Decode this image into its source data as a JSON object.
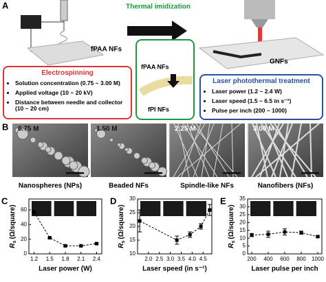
{
  "panel_a": {
    "label": "A",
    "fpaa_label": "fPAA NFs",
    "arrow_label": "Thermal imidization",
    "inset_top": "fPAA NFs",
    "inset_bottom": "fPI NFs",
    "gnf_label": "GNFs",
    "electrospinning": {
      "title": "Electrospinning",
      "items": [
        "Solution concentration (0.75 ~ 3.00 M)",
        "Applied voltage (10 ~ 20 kV)",
        "Distance between needle and collector (10 ~ 20 cm)"
      ]
    },
    "laser": {
      "title": "Laser photothermal treatment",
      "items": [
        "Laser power (1.2 ~ 2.4 W)",
        "Laser speed (1.5 ~ 6.5 in s⁻¹)",
        "Pulse per inch (200 ~ 1000)"
      ]
    }
  },
  "panel_b": {
    "label": "B",
    "images": [
      {
        "concentration": "0.75 M",
        "caption": "Nanospheres (NPs)"
      },
      {
        "concentration": "1.50 M",
        "caption": "Beaded NFs"
      },
      {
        "concentration": "2.25 M",
        "caption": "Spindle-like NFs"
      },
      {
        "concentration": "3.00 M",
        "caption": "Nanofibers (NFs)"
      }
    ]
  },
  "chart_data": [
    {
      "type": "line",
      "panel": "C",
      "x_label": "Laser power (W)",
      "y_label_symbol": "R",
      "y_label_subscript": "s",
      "y_label_unit": "(Ω/square)",
      "x": [
        1.2,
        1.5,
        1.8,
        2.1,
        2.4
      ],
      "xlim": [
        1.1,
        2.5
      ],
      "xticks": [
        1.2,
        1.5,
        1.8,
        2.1,
        2.4
      ],
      "ylim": [
        0,
        75
      ],
      "yticks": [
        0,
        20,
        40,
        60
      ],
      "series": [
        {
          "color": "#000000",
          "values": [
            57,
            22,
            11,
            11,
            14
          ],
          "errors": [
            2,
            1,
            1,
            1,
            1
          ]
        }
      ]
    },
    {
      "type": "line",
      "panel": "D",
      "x_label": "Laser speed (in s⁻¹)",
      "y_label_symbol": "R",
      "y_label_subscript": "s",
      "y_label_unit": "(Ω/square)",
      "x": [
        1.6,
        3.3,
        3.9,
        4.4,
        4.8
      ],
      "xlim": [
        1.5,
        4.9
      ],
      "xticks": [
        2.0,
        2.5,
        3.0,
        3.5,
        4.0,
        4.5
      ],
      "ylim": [
        10,
        30
      ],
      "yticks": [
        10,
        15,
        20,
        25,
        30
      ],
      "series": [
        {
          "color": "#000000",
          "values": [
            22,
            15,
            17,
            20,
            26
          ],
          "errors": [
            4,
            1.5,
            1,
            1,
            2
          ]
        }
      ]
    },
    {
      "type": "line",
      "panel": "E",
      "x_label": "Laser pulse per inch",
      "y_label_symbol": "R",
      "y_label_subscript": "s",
      "y_label_unit": "(Ω/square)",
      "x": [
        200,
        400,
        600,
        800,
        1000
      ],
      "xlim": [
        150,
        1050
      ],
      "xticks": [
        200,
        400,
        600,
        800,
        1000
      ],
      "ylim": [
        0,
        35
      ],
      "yticks": [
        0,
        5,
        10,
        15,
        20,
        25,
        30,
        35
      ],
      "series": [
        {
          "color": "#000000",
          "values": [
            12,
            12.5,
            14,
            13.5,
            11
          ],
          "errors": [
            1,
            2,
            2,
            1,
            0.5
          ]
        }
      ]
    }
  ]
}
